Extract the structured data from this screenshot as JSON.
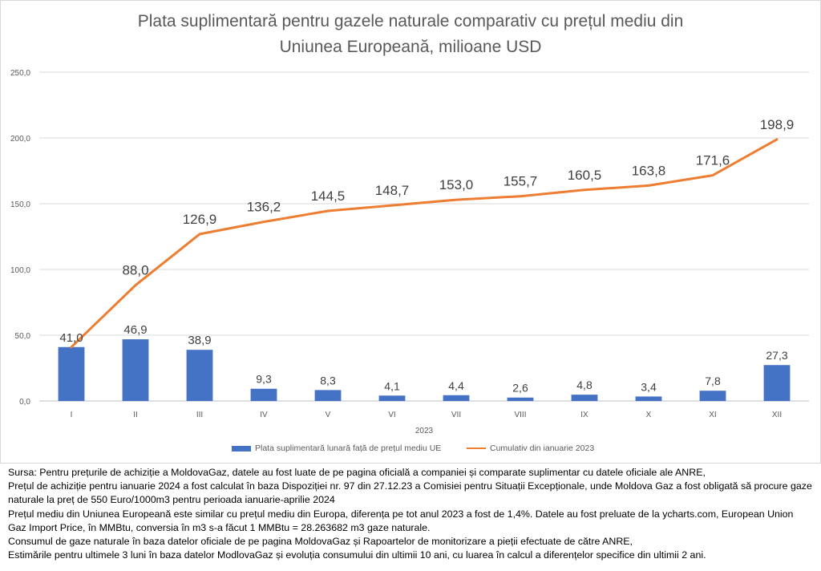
{
  "chart_data": {
    "type": "bar",
    "title_lines": [
      "Plata suplimentară pentru gazele naturale comparativ cu prețul mediu din",
      "Uniunea Europeană, milioane USD"
    ],
    "xlabel": "2023",
    "ylabel": "",
    "categories": [
      "I",
      "II",
      "III",
      "IV",
      "V",
      "VI",
      "VII",
      "VIII",
      "IX",
      "X",
      "XI",
      "XII"
    ],
    "series": [
      {
        "name": "Plata suplimentară lunară față de prețul mediu UE",
        "type": "bar",
        "color": "#4472C4",
        "values": [
          41.0,
          46.9,
          38.9,
          9.3,
          8.3,
          4.1,
          4.4,
          2.6,
          4.8,
          3.4,
          7.8,
          27.3
        ],
        "labels": [
          "41,0",
          "46,9",
          "38,9",
          "9,3",
          "8,3",
          "4,1",
          "4,4",
          "2,6",
          "4,8",
          "3,4",
          "7,8",
          "27,3"
        ]
      },
      {
        "name": "Cumulativ din ianuarie 2023",
        "type": "line",
        "color": "#ED7D31",
        "values": [
          41.0,
          88.0,
          126.9,
          136.2,
          144.5,
          148.7,
          153.0,
          155.7,
          160.5,
          163.8,
          171.6,
          198.9
        ],
        "labels": [
          "41,0",
          "88,0",
          "126,9",
          "136,2",
          "144,5",
          "148,7",
          "153,0",
          "155,7",
          "160,5",
          "163,8",
          "171,6",
          "198,9"
        ]
      }
    ],
    "ylim": [
      0,
      250
    ],
    "yticks": [
      0,
      50,
      100,
      150,
      200,
      250
    ],
    "ytick_labels": [
      "0,0",
      "50,0",
      "100,0",
      "150,0",
      "200,0",
      "250,0"
    ],
    "grid": true,
    "legend": "bottom"
  },
  "notes": [
    "Sursa: Pentru prețurile de achiziție a MoldovaGaz, datele au fost luate de pe pagina oficială a companiei și comparate suplimentar cu datele oficiale ale ANRE,",
    "Prețul de achiziție pentru ianuarie 2024 a fost calculat în baza Dispoziției nr. 97 din 27.12.23 a Comisiei pentru Situații Excepționale, unde Moldova Gaz a fost obligată să procure gaze naturale la preț de 550 Euro/1000m3 pentru perioada ianuarie-aprilie 2024",
    "Prețul mediu din Uniunea Europeană este similar cu prețul mediu din Europa, diferența pe tot anul 2023 a fost de 1,4%. Datele au fost preluate de la ycharts.com, European Union Gaz Import Price, în MMBtu, conversia în m3 s-a făcut 1 MMBtu = 28.263682 m3 gaze naturale.",
    "Consumul de gaze naturale în baza datelor oficiale de pe pagina MoldovaGaz și Rapoartelor de monitorizare a pieții efectuate de către ANRE,",
    "Estimările pentru ultimele 3 luni în baza datelor ModlovaGaz și evoluția consumului din ultimii 10 ani, cu luarea în calcul a diferențelor specifice din ultimii 2 ani."
  ]
}
